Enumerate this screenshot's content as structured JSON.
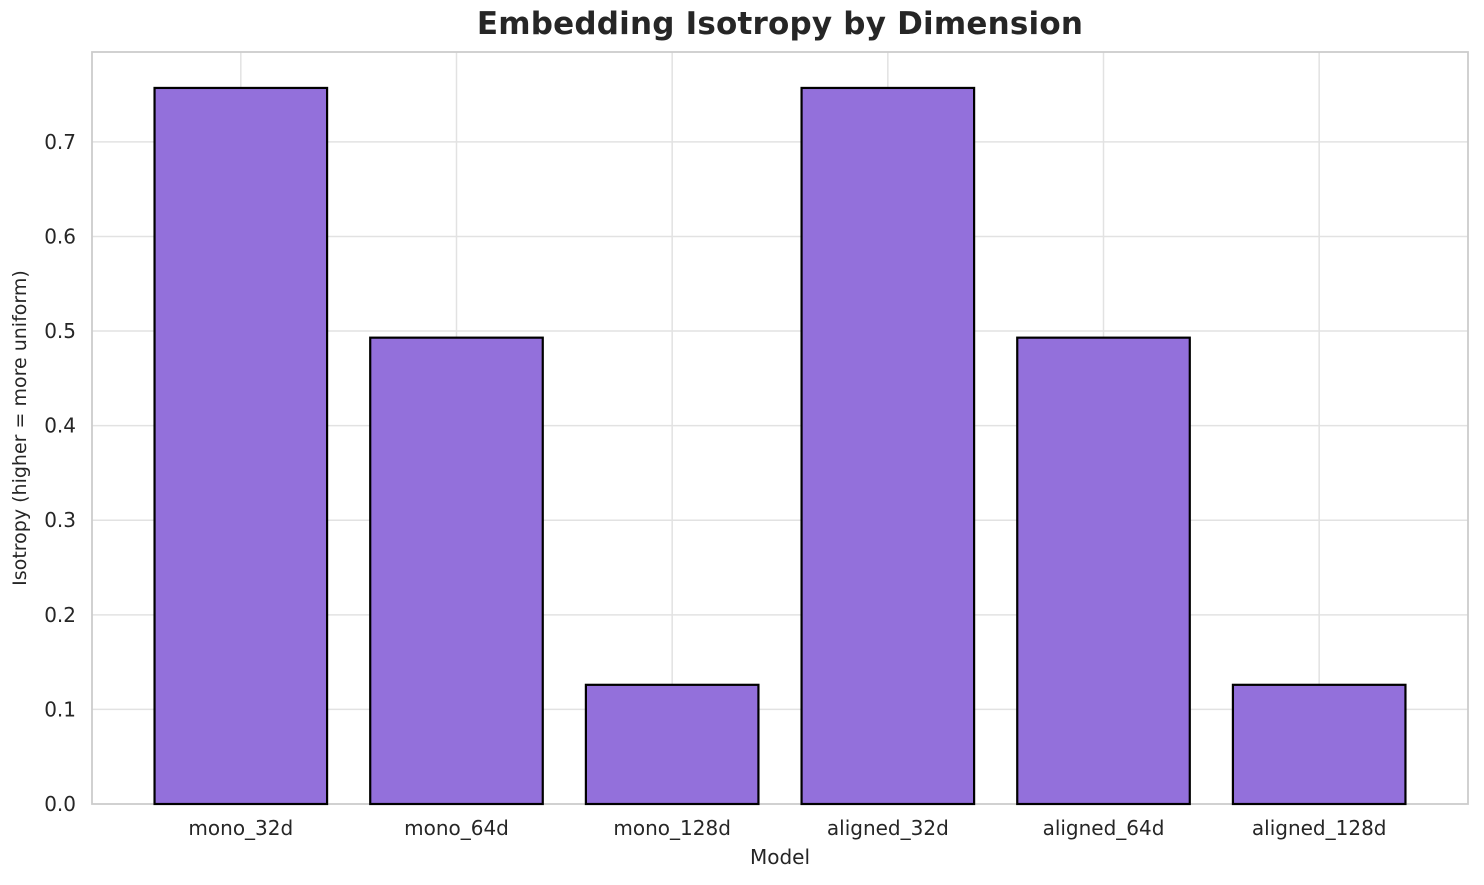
{
  "chart_data": {
    "type": "bar",
    "title": "Embedding Isotropy by Dimension",
    "xlabel": "Model",
    "ylabel": "Isotropy (higher = more uniform)",
    "categories": [
      "mono_32d",
      "mono_64d",
      "mono_128d",
      "aligned_32d",
      "aligned_64d",
      "aligned_128d"
    ],
    "values": [
      0.757,
      0.493,
      0.126,
      0.757,
      0.493,
      0.126
    ],
    "yticks": [
      0.0,
      0.1,
      0.2,
      0.3,
      0.4,
      0.5,
      0.6,
      0.7
    ],
    "ytick_labels": [
      "0.0",
      "0.1",
      "0.2",
      "0.3",
      "0.4",
      "0.5",
      "0.6",
      "0.7"
    ],
    "ylim": [
      0,
      0.795
    ],
    "grid": true,
    "legend": null,
    "bar_width_fraction": 0.8,
    "colors": {
      "bar_fill": "#9370DB",
      "bar_edge": "#000000",
      "grid": "#e2e2e2",
      "spine": "#cccccc",
      "text": "#262626",
      "background": "#ffffff"
    }
  }
}
